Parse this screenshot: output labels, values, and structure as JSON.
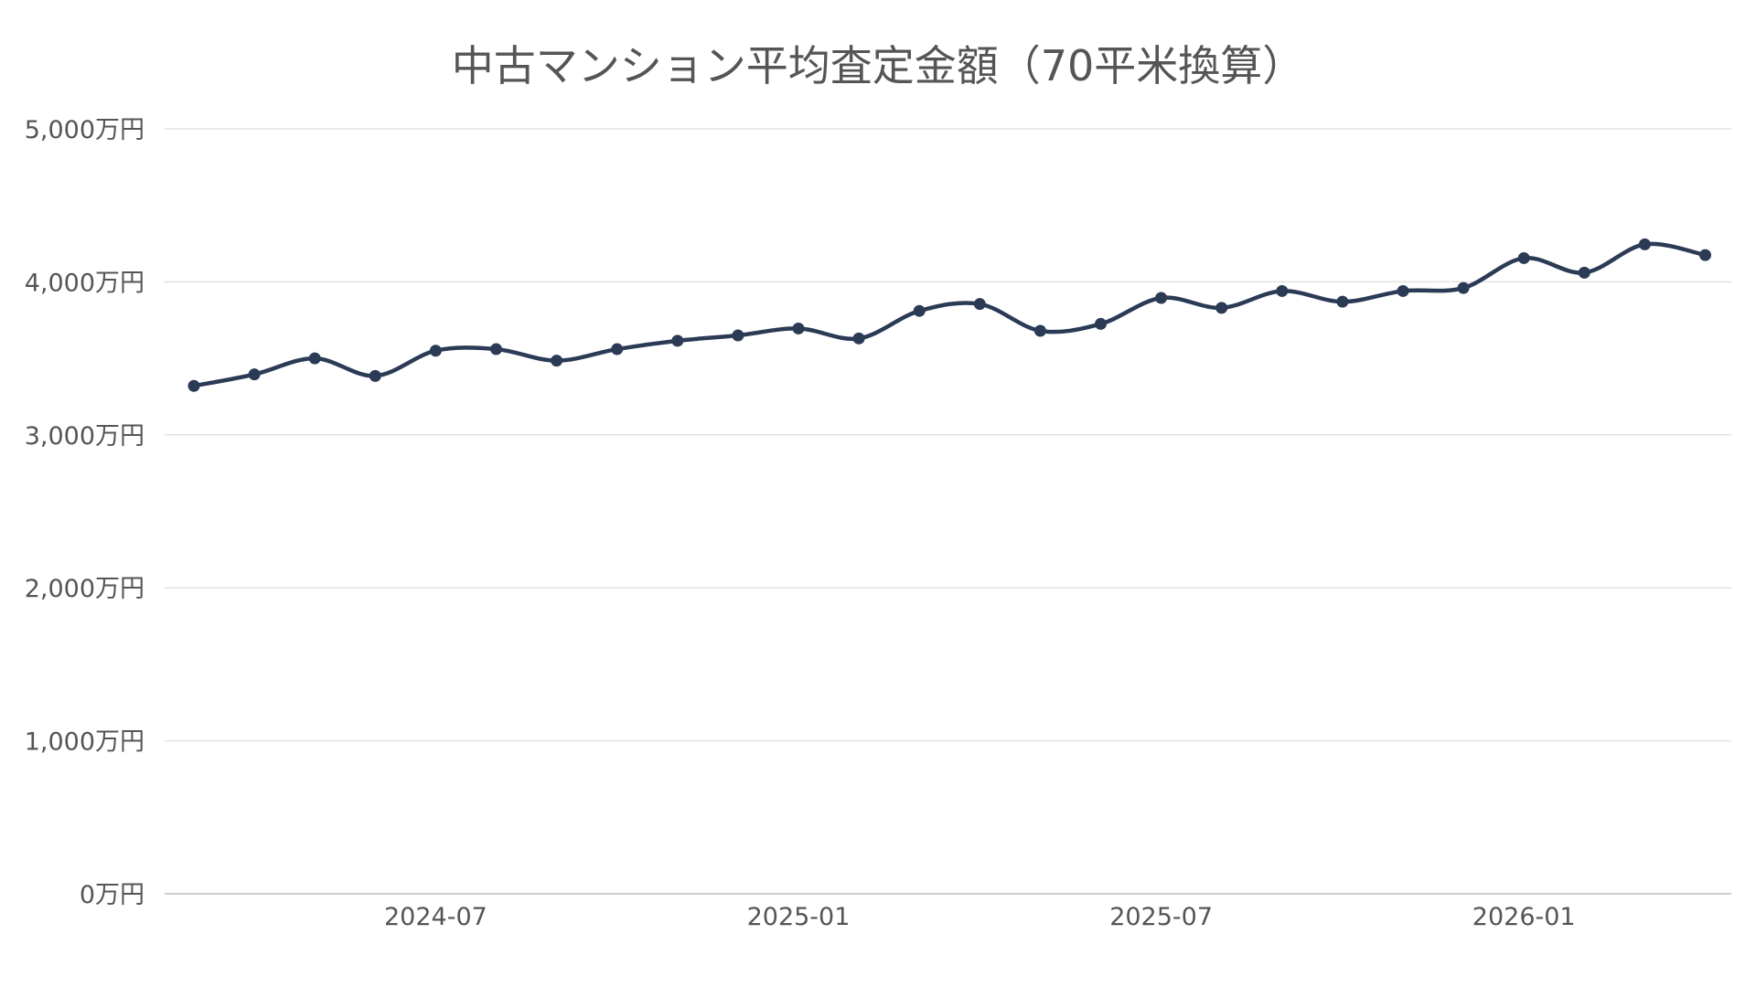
{
  "chart_data": {
    "type": "line",
    "title": "中古マンション平均査定金額（70平米換算）",
    "xlabel": "",
    "ylabel": "",
    "x": [
      "2024-03",
      "2024-04",
      "2024-05",
      "2024-06",
      "2024-07",
      "2024-08",
      "2024-09",
      "2024-10",
      "2024-11",
      "2024-12",
      "2025-01",
      "2025-02",
      "2025-03",
      "2025-04",
      "2025-05",
      "2025-06",
      "2025-07",
      "2025-08",
      "2025-09",
      "2025-10",
      "2025-11",
      "2025-12",
      "2026-01",
      "2026-02",
      "2026-03",
      "2026-04"
    ],
    "series": [
      {
        "values": [
          3320,
          3395,
          3500,
          3385,
          3550,
          3560,
          3485,
          3560,
          3615,
          3650,
          3695,
          3630,
          3810,
          3855,
          3680,
          3725,
          3895,
          3830,
          3940,
          3870,
          3940,
          3960,
          4155,
          4060,
          4245,
          4175
        ]
      }
    ],
    "x_tick_labels": [
      "2024-07",
      "2025-01",
      "2025-07",
      "2026-01"
    ],
    "y_ticks": [
      0,
      1000,
      2000,
      3000,
      4000,
      5000
    ],
    "y_tick_labels": [
      "0万円",
      "1,000万円",
      "2,000万円",
      "3,000万円",
      "4,000万円",
      "5,000万円"
    ],
    "ylim": [
      0,
      5000
    ],
    "grid": true,
    "legend": "none",
    "line_color": "#2b3a55"
  }
}
